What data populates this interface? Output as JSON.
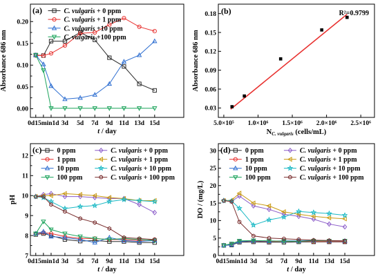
{
  "chart_data": [
    {
      "type": "line",
      "panel": "(a)",
      "xlabel_parts": [
        "t",
        " / day"
      ],
      "ylabel": "Absorbance 686 nm",
      "categories": [
        "0d",
        "15min",
        "1d",
        "3d",
        "5d",
        "7d",
        "9d",
        "11d",
        "13d",
        "15d"
      ],
      "x_tick_labels": [
        "0d15min1d",
        "3d",
        "5d",
        "7d",
        "9d",
        "11d",
        "13d",
        "15d"
      ],
      "ylim": [
        -0.02,
        0.24
      ],
      "yticks": [
        "0.00",
        "0.05",
        "0.10",
        "0.15",
        "0.20"
      ],
      "legend_position": "top-left",
      "series": [
        {
          "name": "+ 0 ppm",
          "species": "C. vulgaris",
          "color": "#2b2b2b",
          "marker": "square",
          "values": [
            0.123,
            0.122,
            0.155,
            0.155,
            0.175,
            0.158,
            0.117,
            0.097,
            0.057,
            0.042
          ]
        },
        {
          "name": "+ 1 ppm",
          "species": "C. vulgaris",
          "color": "#e8312f",
          "marker": "circle",
          "values": [
            0.122,
            0.122,
            0.127,
            0.145,
            0.173,
            0.175,
            0.193,
            0.208,
            0.188,
            0.178
          ]
        },
        {
          "name": "+10 ppm",
          "species": "C. vulgaris",
          "color": "#2f6fd1",
          "marker": "triangle",
          "values": [
            0.123,
            0.102,
            0.052,
            0.022,
            0.025,
            0.032,
            0.057,
            0.108,
            0.123,
            0.155
          ]
        },
        {
          "name": "+100 ppm",
          "species": "C. vulgaris",
          "color": "#1aa35a",
          "marker": "triangle-down",
          "values": [
            0.123,
            0.088,
            0.001,
            0.001,
            0.001,
            0.001,
            0.001,
            0.001,
            0.001,
            0.001
          ]
        }
      ]
    },
    {
      "type": "scatter",
      "panel": "(b)",
      "xlabel_main": "N",
      "xlabel_sub": "C. vulgaris",
      "xlabel_tail": " (cells/mL)",
      "ylabel": "Absorbance 686 nm",
      "annotation": "R²=0.9799",
      "xlim": [
        420000,
        2700000
      ],
      "ylim": [
        0.015,
        0.195
      ],
      "x_tick_labels": [
        "5.0×10⁵",
        "1.0×10⁶",
        "1.5×10⁶",
        "2.0×10⁶",
        "2.5×10⁶"
      ],
      "xticks": [
        500000,
        1000000,
        1500000,
        2000000,
        2500000
      ],
      "y_tick_labels": [
        "0.03",
        "0.06",
        "0.09",
        "0.12",
        "0.15",
        "0.18"
      ],
      "yticks": [
        0.03,
        0.06,
        0.09,
        0.12,
        0.15,
        0.18
      ],
      "points": [
        {
          "x": 620000,
          "y": 0.032
        },
        {
          "x": 800000,
          "y": 0.049
        },
        {
          "x": 1330000,
          "y": 0.108
        },
        {
          "x": 1930000,
          "y": 0.154
        },
        {
          "x": 2300000,
          "y": 0.174
        }
      ],
      "fit_line": {
        "x": [
          600000,
          2300000
        ],
        "y": [
          0.028,
          0.179
        ],
        "color": "#e8312f"
      }
    },
    {
      "type": "line",
      "panel": "(c)",
      "xlabel_parts": [
        "t",
        " / day"
      ],
      "ylabel": "pH",
      "categories": [
        "0d",
        "15min",
        "1d",
        "3d",
        "5d",
        "7d",
        "9d",
        "11d",
        "13d",
        "15d"
      ],
      "x_tick_labels": [
        "0d15min1d",
        "3d",
        "5d",
        "7d",
        "9d",
        "11d",
        "13d",
        "15d"
      ],
      "ylim": [
        7,
        12.6
      ],
      "yticks": [
        "7",
        "8",
        "9",
        "10",
        "11",
        "12"
      ],
      "legend_position": "top",
      "series": [
        {
          "name": "0 ppm",
          "color": "#2b2b2b",
          "marker": "square",
          "values": [
            8.05,
            8.1,
            8.0,
            7.8,
            7.72,
            7.75,
            7.7,
            7.7,
            7.65,
            7.65
          ]
        },
        {
          "name": "1 ppm",
          "color": "#e8312f",
          "marker": "circle",
          "values": [
            8.1,
            8.15,
            8.1,
            7.95,
            7.85,
            7.85,
            7.8,
            7.8,
            7.75,
            7.8
          ]
        },
        {
          "name": "10 ppm",
          "color": "#2f6fd1",
          "marker": "triangle",
          "values": [
            8.1,
            8.2,
            7.95,
            7.9,
            7.8,
            7.65,
            7.9,
            7.75,
            7.7,
            7.75
          ]
        },
        {
          "name": "100 ppm",
          "color": "#1aa35a",
          "marker": "triangle-down",
          "values": [
            8.1,
            8.7,
            8.3,
            8.1,
            7.95,
            7.85,
            7.8,
            7.85,
            7.8,
            7.75
          ]
        },
        {
          "name": "+ 0 ppm",
          "species": "C. vulgaris",
          "color": "#8b5cc9",
          "marker": "diamond",
          "values": [
            9.95,
            10.05,
            10.1,
            9.95,
            9.95,
            9.9,
            9.85,
            9.85,
            9.55,
            9.15
          ]
        },
        {
          "name": "+ 1 ppm",
          "species": "C. vulgaris",
          "color": "#c99a10",
          "marker": "triangle-left",
          "values": [
            9.95,
            10.0,
            10.0,
            10.1,
            10.05,
            10.0,
            9.9,
            9.85,
            9.75,
            9.75
          ]
        },
        {
          "name": "+ 10 ppm",
          "species": "C. vulgaris",
          "color": "#18b8c4",
          "marker": "star",
          "values": [
            9.95,
            9.9,
            9.7,
            9.35,
            9.45,
            9.5,
            9.7,
            9.8,
            9.75,
            9.7
          ]
        },
        {
          "name": "+ 100 ppm",
          "species": "C. vulgaris",
          "color": "#7a2f2f",
          "marker": "hexagon",
          "values": [
            9.95,
            9.95,
            9.55,
            9.2,
            8.85,
            8.65,
            8.35,
            7.9,
            7.85,
            7.8
          ]
        }
      ]
    },
    {
      "type": "line",
      "panel": "(d)",
      "xlabel_parts": [
        "t",
        " / day"
      ],
      "ylabel": "DO / (mg/L)",
      "categories": [
        "0d",
        "15min",
        "1d",
        "3d",
        "5d",
        "7d",
        "9d",
        "11d",
        "13d",
        "15d"
      ],
      "x_tick_labels": [
        "0d15min1d",
        "3d",
        "5d",
        "7d",
        "9d",
        "11d",
        "13d",
        "15d"
      ],
      "ylim": [
        0,
        32
      ],
      "yticks": [
        "0",
        "5",
        "10",
        "15",
        "20",
        "25",
        "30"
      ],
      "legend_position": "top",
      "series": [
        {
          "name": "0 ppm",
          "color": "#2b2b2b",
          "marker": "square",
          "values": [
            2.9,
            3.0,
            3.8,
            3.9,
            3.8,
            3.8,
            3.9,
            3.9,
            3.9,
            3.9
          ]
        },
        {
          "name": "1 ppm",
          "color": "#e8312f",
          "marker": "circle",
          "values": [
            2.9,
            3.2,
            4.0,
            4.1,
            4.0,
            4.1,
            4.1,
            4.0,
            4.0,
            4.0
          ]
        },
        {
          "name": "10 ppm",
          "color": "#2f6fd1",
          "marker": "triangle",
          "values": [
            2.9,
            3.1,
            4.0,
            4.2,
            4.1,
            4.2,
            4.2,
            4.3,
            4.2,
            4.2
          ]
        },
        {
          "name": "100 ppm",
          "color": "#1aa35a",
          "marker": "triangle-down",
          "values": [
            2.9,
            3.4,
            4.2,
            4.3,
            4.2,
            4.1,
            4.1,
            4.2,
            4.2,
            4.2
          ]
        },
        {
          "name": "+ 0 ppm",
          "species": "C. vulgaris",
          "color": "#8b5cc9",
          "marker": "diamond",
          "values": [
            15.7,
            15.5,
            17.0,
            14.2,
            13.2,
            11.8,
            11.2,
            10.4,
            9.0,
            8.2
          ]
        },
        {
          "name": "+ 1 ppm",
          "species": "C. vulgaris",
          "color": "#c99a10",
          "marker": "triangle-left",
          "values": [
            15.7,
            15.8,
            17.8,
            15.0,
            14.2,
            12.5,
            11.8,
            11.2,
            10.8,
            10.5
          ]
        },
        {
          "name": "+ 10 ppm",
          "species": "C. vulgaris",
          "color": "#18b8c4",
          "marker": "star",
          "values": [
            15.7,
            15.6,
            13.5,
            8.7,
            10.2,
            11.0,
            12.6,
            12.3,
            12.0,
            11.5
          ]
        },
        {
          "name": "+ 100 ppm",
          "species": "C. vulgaris",
          "color": "#7a2f2f",
          "marker": "hexagon",
          "values": [
            15.7,
            15.4,
            9.6,
            5.6,
            5.0,
            4.8,
            4.6,
            4.4,
            4.3,
            4.2
          ]
        }
      ]
    }
  ]
}
